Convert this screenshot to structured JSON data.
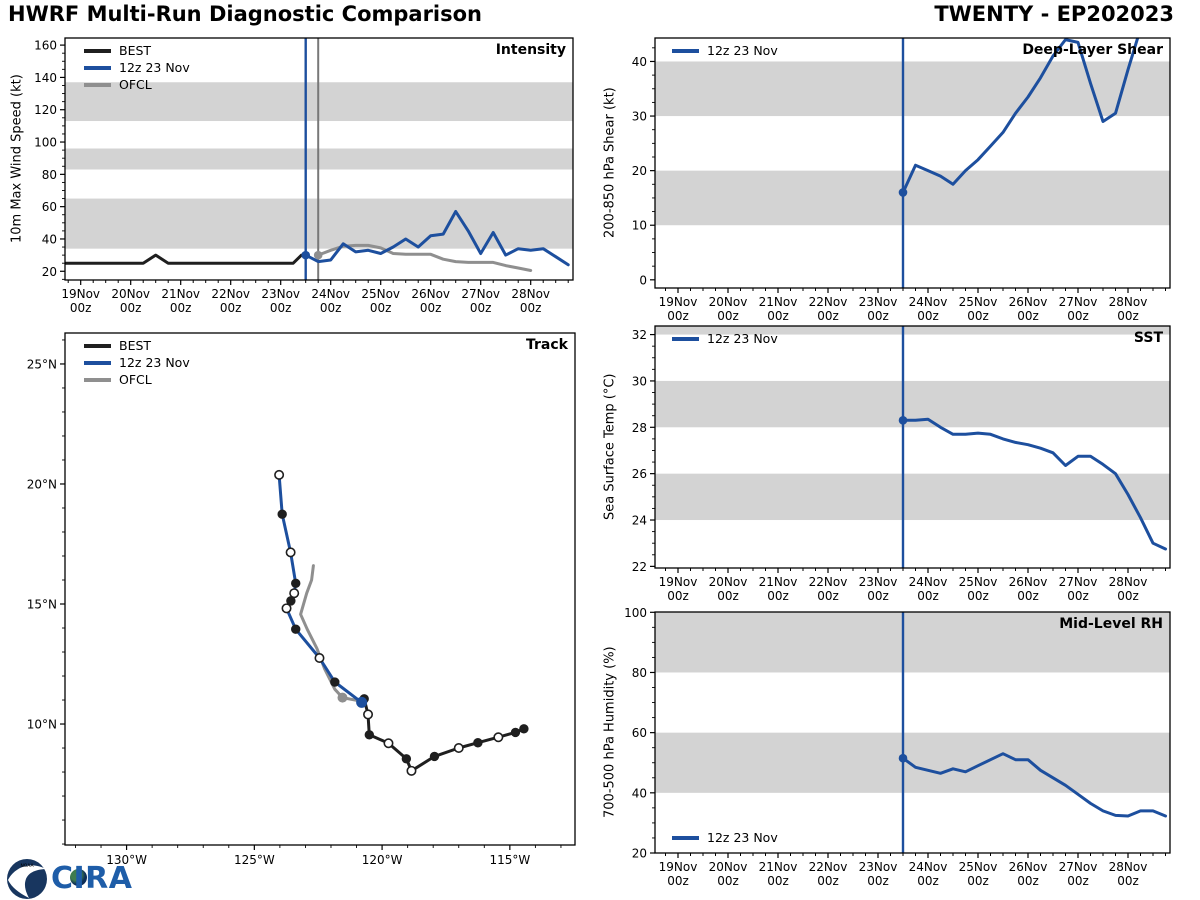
{
  "header": {
    "title": "HWRF Multi-Run Diagnostic Comparison",
    "storm_id": "TWENTY - EP202023"
  },
  "logos": {
    "cira": "CIRA"
  },
  "colors": {
    "model_blue": "#1d4f9e",
    "best_black": "#1f1f1f",
    "ofcl_gray": "#8f8f8f",
    "band_gray": "#d3d3d3",
    "vline_gray": "#787878",
    "logo_navy": "#18365f",
    "logo_blue": "#1e5da8"
  },
  "legend": {
    "best": "BEST",
    "model": "12z 23 Nov",
    "ofcl": "OFCL"
  },
  "time_axis": {
    "day_labels": [
      "19Nov",
      "20Nov",
      "21Nov",
      "22Nov",
      "23Nov",
      "24Nov",
      "25Nov",
      "26Nov",
      "27Nov",
      "28Nov"
    ],
    "hour_label": "00z",
    "minor_step_hours": 6,
    "forecast_init_hour": 108,
    "ofcl_init_hour": 114
  },
  "chart_data": {
    "panels": {
      "intensity": {
        "type": "line",
        "title": "Intensity",
        "ylabel": "10m Max Wind Speed (kt)",
        "ylim": [
          14.6,
          164.4
        ],
        "yticks": [
          20,
          40,
          60,
          80,
          100,
          120,
          140,
          160
        ],
        "y_minor_step": 5,
        "bands": [
          [
            34,
            65
          ],
          [
            83,
            96
          ],
          [
            113,
            137
          ]
        ],
        "vlines": [
          {
            "t": 108,
            "color": "model_blue",
            "width": 2.4
          },
          {
            "t": 114,
            "color": "vline_gray",
            "width": 2
          }
        ],
        "series": [
          {
            "name_key": "best",
            "label": "BEST",
            "color_key": "best_black",
            "width": 3,
            "points": [
              [
                -7.5,
                25
              ],
              [
                30,
                25
              ],
              [
                36,
                30
              ],
              [
                42,
                25
              ],
              [
                102,
                25
              ],
              [
                106,
                30
              ],
              [
                108,
                30
              ]
            ]
          },
          {
            "name_key": "ofcl",
            "label": "OFCL",
            "color_key": "ofcl_gray",
            "width": 3,
            "start_hour": 114,
            "step": 6,
            "start_dot": true,
            "values": [
              30,
              33,
              35.5,
              36,
              36,
              34.5,
              31,
              30.5,
              30.5,
              30.5,
              27.5,
              26,
              25.5,
              25.5,
              25.5,
              23.5,
              22,
              20.5
            ]
          },
          {
            "name_key": "model",
            "label": "12z 23 Nov",
            "color_key": "model_blue",
            "width": 3,
            "start_hour": 108,
            "step": 6,
            "start_dot": true,
            "values": [
              30,
              26,
              27,
              37,
              32,
              33,
              31,
              35,
              40,
              35,
              42,
              43,
              57,
              45,
              31,
              44,
              30,
              34,
              33,
              34,
              29,
              24
            ]
          }
        ]
      },
      "shear": {
        "type": "line",
        "title": "Deep-Layer Shear",
        "ylabel": "200-850 hPa Shear (kt)",
        "ylim": [
          -1.5,
          44.3
        ],
        "yticks": [
          0,
          10,
          20,
          30,
          40
        ],
        "y_minor_step": 2.5,
        "bands": [
          [
            10,
            20
          ],
          [
            30,
            40
          ]
        ],
        "vlines": [
          {
            "t": 108,
            "color": "model_blue",
            "width": 2.4
          }
        ],
        "series": [
          {
            "name_key": "model",
            "label": "12z 23 Nov",
            "color_key": "model_blue",
            "width": 3,
            "start_hour": 108,
            "step": 6,
            "start_dot": true,
            "values": [
              16,
              21,
              20,
              19,
              17.5,
              20,
              22,
              24.5,
              27,
              30.5,
              33.5,
              37,
              41,
              44,
              43.5,
              36,
              29,
              30.5,
              38.5,
              46
            ]
          }
        ]
      },
      "sst": {
        "type": "line",
        "title": "SST",
        "ylabel": "Sea Surface Temp (°C)",
        "ylim": [
          21.93,
          32.37
        ],
        "yticks": [
          22,
          24,
          26,
          28,
          30,
          32
        ],
        "y_minor_step": 0.5,
        "bands": [
          [
            24,
            26
          ],
          [
            28,
            30
          ],
          [
            32,
            32.37
          ]
        ],
        "vlines": [
          {
            "t": 108,
            "color": "model_blue",
            "width": 2.4
          }
        ],
        "series": [
          {
            "name_key": "model",
            "label": "12z 23 Nov",
            "color_key": "model_blue",
            "width": 3,
            "start_hour": 108,
            "step": 6,
            "start_dot": true,
            "values": [
              28.3,
              28.3,
              28.35,
              28.0,
              27.7,
              27.7,
              27.75,
              27.7,
              27.5,
              27.35,
              27.25,
              27.1,
              26.9,
              26.35,
              26.75,
              26.75,
              26.4,
              26.0,
              25.1,
              24.1,
              23.0,
              22.75
            ]
          }
        ]
      },
      "rh": {
        "type": "line",
        "title": "Mid-Level RH",
        "ylabel": "700-500 hPa Humidity (%)",
        "ylim": [
          20,
          100.1
        ],
        "yticks": [
          20,
          40,
          60,
          80,
          100
        ],
        "y_minor_step": 5,
        "bands": [
          [
            40,
            60
          ],
          [
            80,
            100
          ]
        ],
        "vlines": [
          {
            "t": 108,
            "color": "model_blue",
            "width": 2.4
          }
        ],
        "series": [
          {
            "name_key": "model",
            "label": "12z 23 Nov",
            "color_key": "model_blue",
            "width": 3,
            "start_hour": 108,
            "step": 6,
            "start_dot": true,
            "values": [
              51.5,
              48.5,
              47.5,
              46.5,
              48,
              47,
              49,
              51,
              53,
              51,
              51,
              47.5,
              45,
              42.5,
              39.5,
              36.5,
              34,
              32.5,
              32.3,
              34,
              34,
              32.3
            ]
          }
        ]
      },
      "track": {
        "type": "track",
        "title": "Track",
        "lon_limits_w": [
          132.41,
          112.45
        ],
        "lat_limits": [
          4.96,
          26.29
        ],
        "lon_ticks": [
          {
            "v": 130,
            "label": "130°W"
          },
          {
            "v": 125,
            "label": "125°W"
          },
          {
            "v": 120,
            "label": "120°W"
          },
          {
            "v": 115,
            "label": "115°W"
          }
        ],
        "lat_ticks": [
          {
            "v": 10,
            "label": "10°N"
          },
          {
            "v": 15,
            "label": "15°N"
          },
          {
            "v": 20,
            "label": "20°N"
          },
          {
            "v": 25,
            "label": "25°N"
          }
        ],
        "minor_tick_deg": 1,
        "series": [
          {
            "name_key": "ofcl",
            "label": "OFCL",
            "color_key": "ofcl_gray",
            "width": 3,
            "points": [
              [
                120.82,
                10.95,
                ""
              ],
              [
                121.55,
                11.1,
                "g"
              ],
              [
                121.85,
                11.45,
                ""
              ],
              [
                122.25,
                12.3,
                ""
              ],
              [
                122.55,
                13.15,
                ""
              ],
              [
                122.93,
                13.95,
                ""
              ],
              [
                123.19,
                14.57,
                ""
              ],
              [
                122.95,
                15.45,
                ""
              ],
              [
                122.76,
                16.0,
                ""
              ],
              [
                122.69,
                16.6,
                ""
              ]
            ]
          },
          {
            "name_key": "best",
            "label": "BEST",
            "color_key": "best_black",
            "width": 3,
            "points": [
              [
                114.45,
                9.8,
                "f"
              ],
              [
                114.78,
                9.65,
                "f"
              ],
              [
                115.45,
                9.45,
                "o"
              ],
              [
                116.25,
                9.22,
                "f"
              ],
              [
                117.0,
                9.0,
                "o"
              ],
              [
                117.95,
                8.65,
                "f"
              ],
              [
                118.85,
                8.05,
                "o"
              ],
              [
                119.05,
                8.55,
                "f"
              ],
              [
                119.75,
                9.2,
                "o"
              ],
              [
                120.5,
                9.55,
                "f"
              ],
              [
                120.55,
                10.4,
                "o"
              ],
              [
                120.7,
                11.05,
                "f"
              ]
            ]
          },
          {
            "name_key": "model",
            "label": "12z 23 Nov",
            "color_key": "model_blue",
            "width": 3,
            "points": [
              [
                120.8,
                10.9,
                "F"
              ],
              [
                121.85,
                11.75,
                "f"
              ],
              [
                122.45,
                12.75,
                "o"
              ],
              [
                123.38,
                13.95,
                "f"
              ],
              [
                123.74,
                14.82,
                "o"
              ],
              [
                123.57,
                15.13,
                "f"
              ],
              [
                123.44,
                15.45,
                "o"
              ],
              [
                123.38,
                15.86,
                "f"
              ],
              [
                123.58,
                17.15,
                "o"
              ],
              [
                123.91,
                18.74,
                "f"
              ],
              [
                124.03,
                20.38,
                "o"
              ]
            ]
          }
        ]
      }
    }
  }
}
